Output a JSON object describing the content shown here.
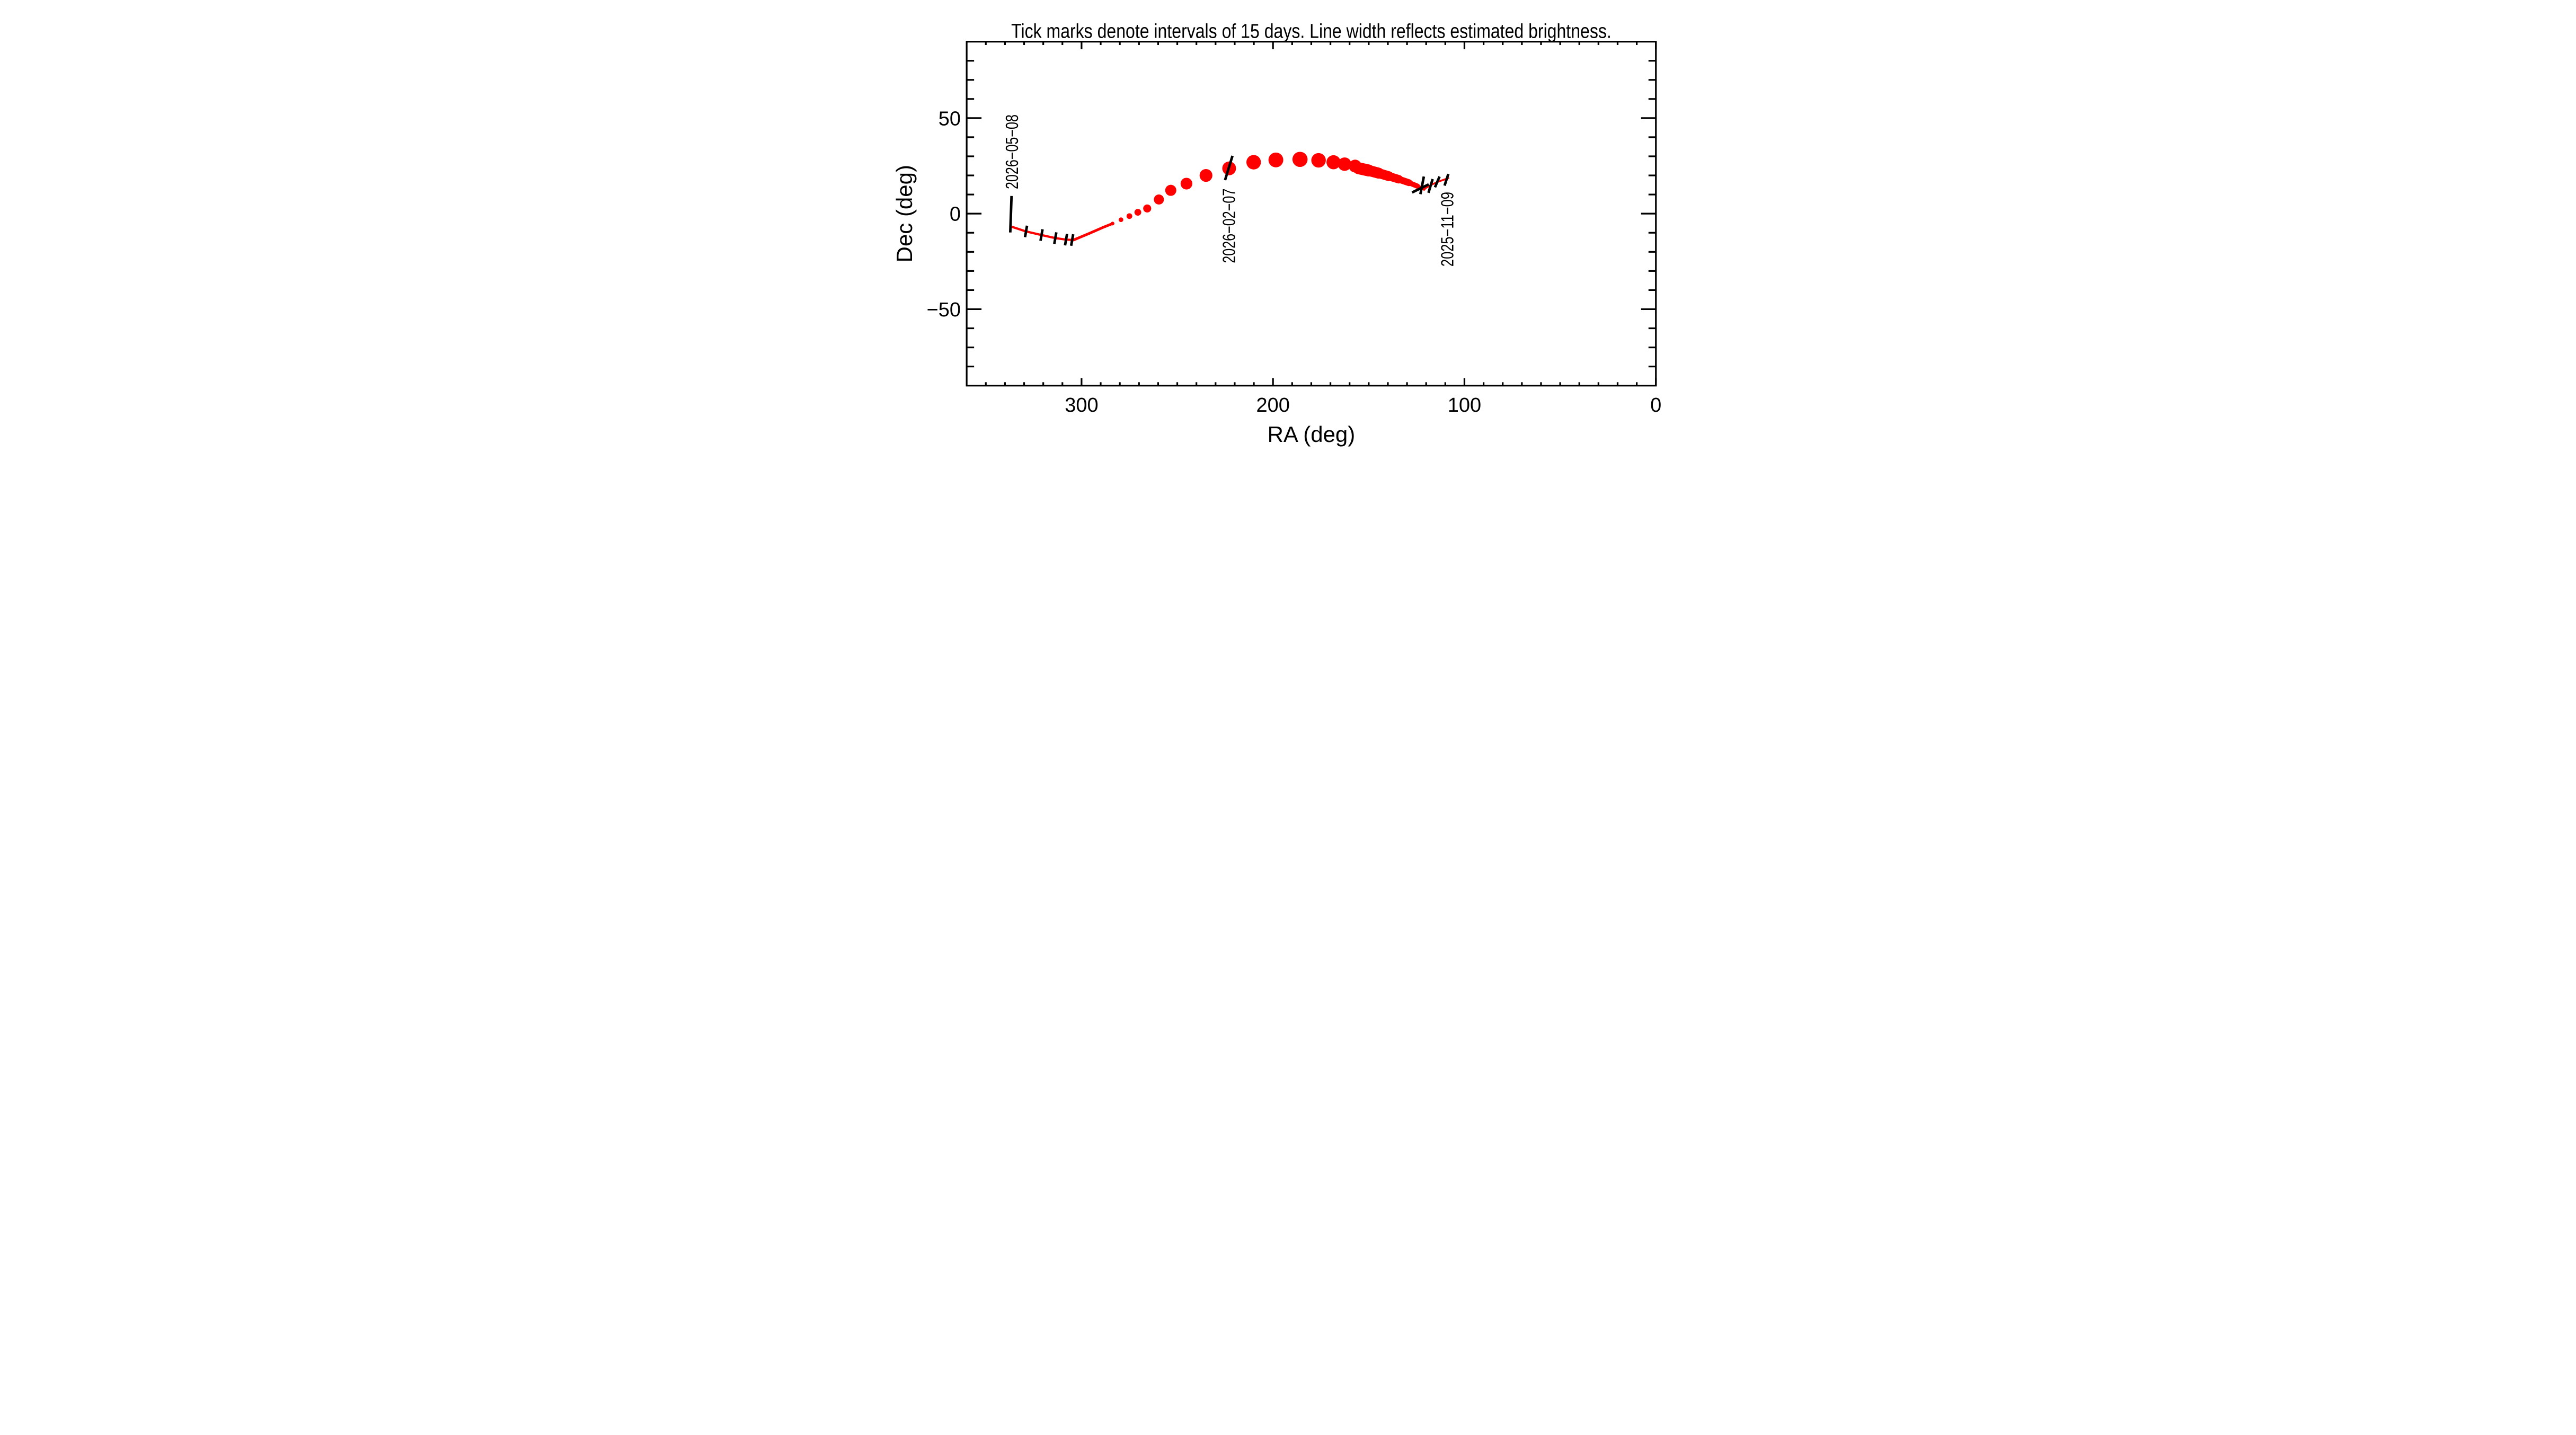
{
  "chart_data": {
    "type": "line",
    "title": "Tick marks denote intervals of 15 days.  Line width reflects estimated brightness.",
    "xlabel": "RA (deg)",
    "ylabel": "Dec (deg)",
    "xlim": [
      360,
      0
    ],
    "ylim": [
      -90,
      90
    ],
    "x_axis_reversed": true,
    "grid": false,
    "background": "#ffffff",
    "frame_color": "#000000",
    "trajectory_color": "#ff0000",
    "interval_tick_color": "#000000",
    "x_ticks": {
      "major": [
        300,
        200,
        100,
        0
      ],
      "minor_step": 10,
      "labels": [
        "300",
        "200",
        "100",
        "0"
      ]
    },
    "y_ticks": {
      "major": [
        50,
        0,
        -50
      ],
      "minor_step": 10,
      "labels": [
        "50",
        "0",
        "−50"
      ]
    },
    "trajectory": {
      "thin_segments": [
        {
          "name": "spring-2026-segment",
          "width": 4.2,
          "points": [
            [
              336.9,
              -6.7
            ],
            [
              329.0,
              -9.3
            ],
            [
              320.9,
              -11.2
            ],
            [
              313.7,
              -12.8
            ],
            [
              308.1,
              -13.6
            ],
            [
              304.2,
              -13.8
            ]
          ]
        },
        {
          "name": "rising-segment",
          "width": 5.0,
          "points": [
            [
              304.2,
              -13.8
            ],
            [
              296.1,
              -10.4
            ],
            [
              289.0,
              -7.3
            ],
            [
              283.8,
              -5.2
            ]
          ]
        },
        {
          "name": "november-2025-segment",
          "width": 3.4,
          "points": [
            [
              121.1,
              12.9
            ],
            [
              116.7,
              15.4
            ],
            [
              113.2,
              16.9
            ],
            [
              108.4,
              18.6
            ]
          ]
        }
      ],
      "dots": [
        [
          283.8,
          -5.2,
          3.5
        ],
        [
          279.4,
          -3.2,
          4.4
        ],
        [
          275.0,
          -1.3,
          5.4
        ],
        [
          270.6,
          0.7,
          6.4
        ],
        [
          265.7,
          2.7,
          7.6
        ],
        [
          259.6,
          7.4,
          9.5
        ],
        [
          253.4,
          12.2,
          10.5
        ],
        [
          245.2,
          15.7,
          11.1
        ],
        [
          235.0,
          20.0,
          12.1
        ],
        [
          222.9,
          23.7,
          13.0
        ],
        [
          210.1,
          26.9,
          13.7
        ],
        [
          198.5,
          28.1,
          14.0
        ],
        [
          185.9,
          28.4,
          14.3
        ],
        [
          176.2,
          27.9,
          13.7
        ],
        [
          168.4,
          26.9,
          13.3
        ],
        [
          162.6,
          25.9,
          12.7
        ],
        [
          157.1,
          24.9,
          12.1
        ]
      ],
      "wedge": [
        [
          155.4,
          23.8,
          11.8
        ],
        [
          150.1,
          22.6,
          10.8
        ],
        [
          144.8,
          21.2,
          9.9
        ],
        [
          139.5,
          19.6,
          8.6
        ],
        [
          134.3,
          18.0,
          7.3
        ],
        [
          129.0,
          16.2,
          5.7
        ],
        [
          124.6,
          14.4,
          4.1
        ],
        [
          121.1,
          12.9,
          2.2
        ]
      ],
      "interval_ticks": [
        {
          "ra": 336.9,
          "dec": -0.3,
          "len": 69,
          "tilt": 2
        },
        {
          "ra": 329.0,
          "dec": -9.3,
          "len": 22,
          "tilt": 10
        },
        {
          "ra": 320.9,
          "dec": -11.2,
          "len": 22,
          "tilt": 10
        },
        {
          "ra": 313.7,
          "dec": -12.8,
          "len": 22,
          "tilt": 10
        },
        {
          "ra": 308.1,
          "dec": -13.6,
          "len": 22,
          "tilt": 10
        },
        {
          "ra": 304.9,
          "dec": -13.8,
          "len": 22,
          "tilt": 10
        },
        {
          "ra": 223.1,
          "dec": 23.9,
          "len": 48,
          "tilt": 17
        },
        {
          "ra": 123.0,
          "dec": 13.2,
          "len": 35,
          "tilt": 64
        },
        {
          "ra": 122.1,
          "dec": 14.8,
          "len": 34,
          "tilt": 11
        },
        {
          "ra": 117.7,
          "dec": 14.5,
          "len": 27,
          "tilt": 17
        },
        {
          "ra": 114.2,
          "dec": 16.6,
          "len": 22,
          "tilt": 23
        },
        {
          "ra": 109.4,
          "dec": 17.7,
          "len": 23,
          "tilt": 18
        }
      ],
      "date_labels": [
        {
          "text": "2026−05−08",
          "anchor_x": 262.9,
          "anchor_y": 357.0
        },
        {
          "text": "2026−02−07",
          "anchor_x": 672.8,
          "anchor_y": 496.7
        },
        {
          "text": "2025−11−09",
          "anchor_x": 1084.7,
          "anchor_y": 503.1
        }
      ]
    }
  }
}
